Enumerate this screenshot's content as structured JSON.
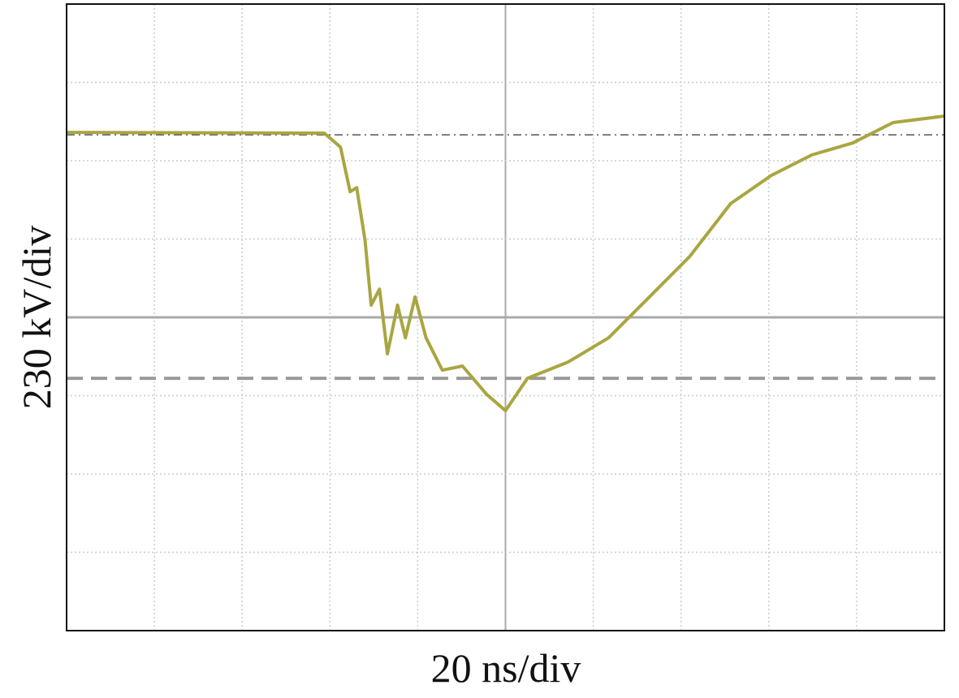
{
  "chart_data": {
    "type": "line",
    "x_label": "20 ns/div",
    "y_label": "230 kV/div",
    "x": [
      -100,
      -41.3,
      -37.6,
      -35.4,
      -33.9,
      -32,
      -30.6,
      -28.7,
      -26.9,
      -24.6,
      -22.8,
      -20.6,
      -18.1,
      -14.4,
      -9.8,
      -4.3,
      0,
      5,
      14.3,
      23.5,
      32.8,
      42,
      51.3,
      60.6,
      69.8,
      79.1,
      88.3,
      100
    ],
    "series": [
      {
        "color": "#a9a641",
        "values": [
          543,
          541,
          500,
          369,
          381,
          226,
          36,
          83,
          -107,
          36,
          -60,
          60,
          -60,
          -155,
          -143,
          -226,
          -274,
          -179,
          -131,
          -60,
          60,
          179,
          334,
          417,
          477,
          512,
          572,
          591
        ]
      }
    ],
    "xlim": [
      -100,
      100
    ],
    "ylim": [
      -920,
      920
    ],
    "xticks": [
      -100,
      -80,
      -60,
      -40,
      -20,
      0,
      20,
      40,
      60,
      80,
      100
    ],
    "yticks": [
      -920,
      -690,
      -460,
      -230,
      0,
      230,
      460,
      690,
      920
    ],
    "grid": true,
    "reference_lines": [
      {
        "value": 536,
        "style": "dash-dot"
      },
      {
        "value": -179,
        "style": "dashed"
      }
    ]
  }
}
